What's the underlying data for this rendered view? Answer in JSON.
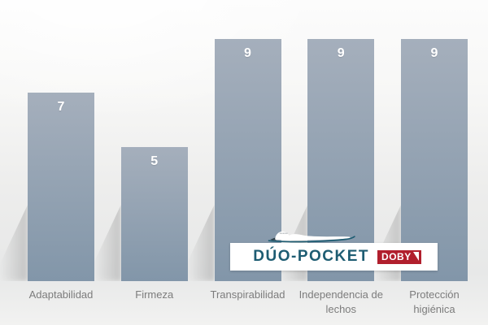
{
  "chart_data": {
    "type": "bar",
    "categories": [
      "Adaptabilidad",
      "Firmeza",
      "Transpirabilidad",
      "Independencia de lechos",
      "Protección higiénica"
    ],
    "values": [
      7,
      5,
      9,
      9,
      9
    ],
    "title": "",
    "xlabel": "",
    "ylabel": "",
    "ylim": [
      0,
      10
    ],
    "grid": false,
    "legend": false,
    "value_labels_shown": true,
    "bar_color_top": "#a5afbc",
    "bar_color_bottom": "#8296a9",
    "value_label_color": "#ffffff",
    "category_label_color": "#7c7c7c"
  },
  "logo": {
    "brand": "DÚO-POCKET",
    "badge": "DOBY",
    "brand_color": "#1d5c72",
    "badge_color": "#b11f2d",
    "icon": "sleeping-person-icon"
  }
}
